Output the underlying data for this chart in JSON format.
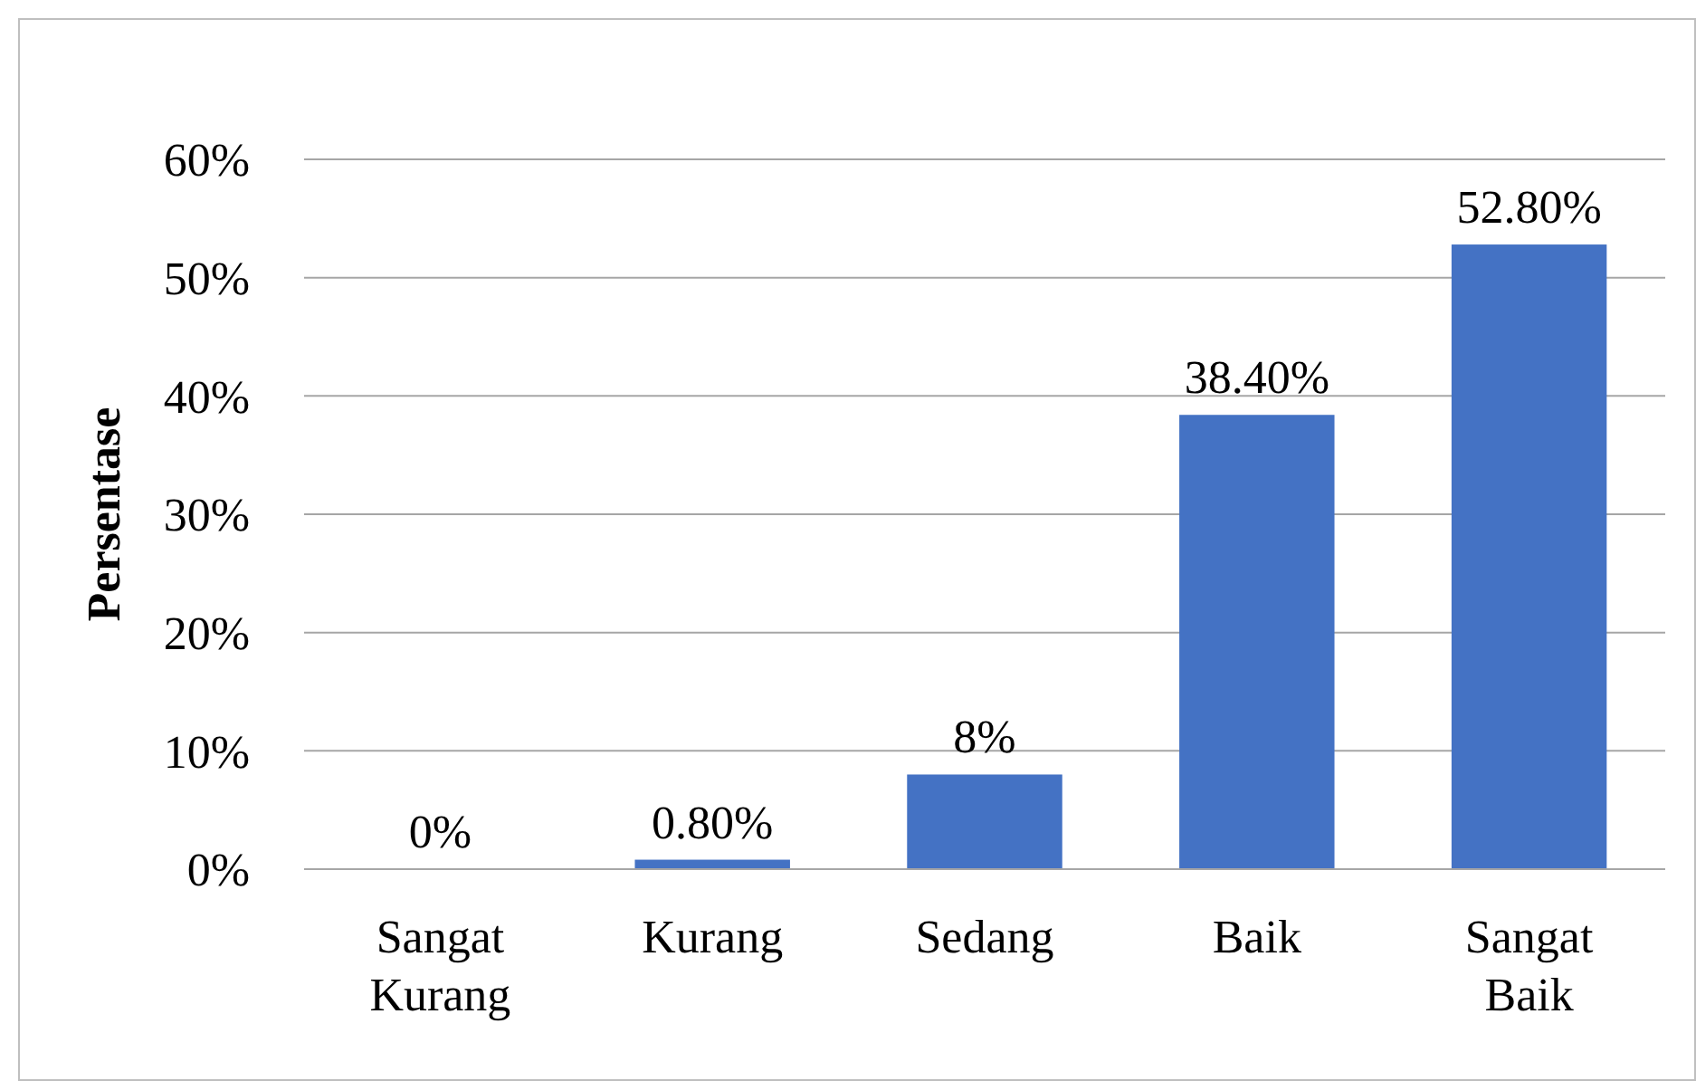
{
  "chart_data": {
    "type": "bar",
    "ylabel": "Persentase",
    "categories": [
      "Sangat Kurang",
      "Kurang",
      "Sedang",
      "Baik",
      "Sangat Baik"
    ],
    "values": [
      0,
      0.8,
      8,
      38.4,
      52.8
    ],
    "value_labels": [
      "0%",
      "0.80%",
      "8%",
      "38.40%",
      "52.80%"
    ],
    "color": "#4472c4",
    "ylim": [
      0,
      60
    ],
    "yticks": [
      {
        "value": 0,
        "label": "0%"
      },
      {
        "value": 10,
        "label": "10%"
      },
      {
        "value": 20,
        "label": "20%"
      },
      {
        "value": 30,
        "label": "30%"
      },
      {
        "value": 40,
        "label": "40%"
      },
      {
        "value": 50,
        "label": "50%"
      },
      {
        "value": 60,
        "label": "60%"
      }
    ],
    "grid": "y"
  }
}
